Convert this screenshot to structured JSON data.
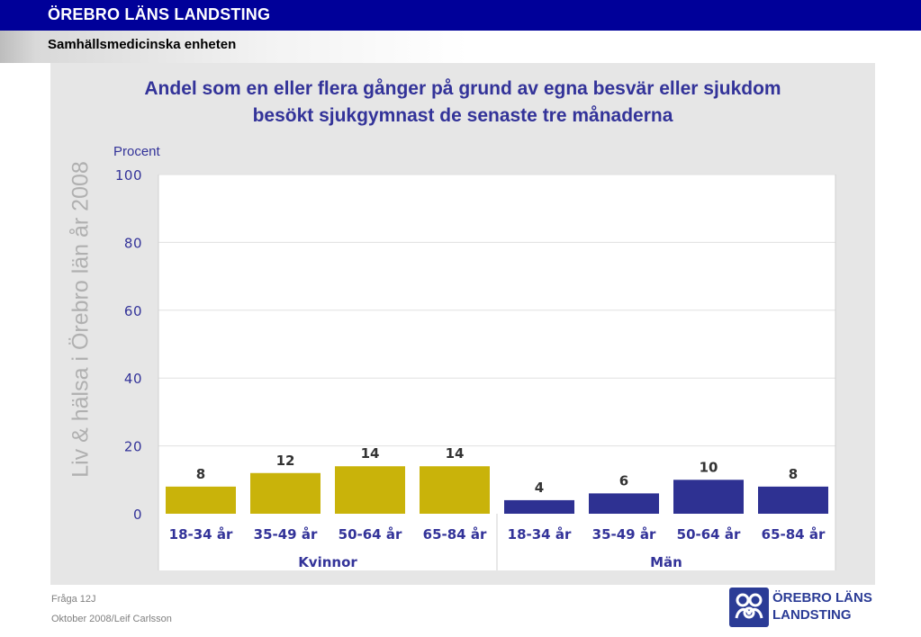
{
  "header": {
    "organization": "ÖREBRO LÄNS LANDSTING",
    "unit": "Samhällsmedicinska enheten"
  },
  "watermark": "Liv & hälsa i Örebro län år 2008",
  "chart_data": {
    "type": "bar",
    "title": "Andel som en eller flera gånger på grund av egna besvär eller sjukdom besökt sjukgymnast de senaste tre månaderna",
    "title_lines": [
      "Andel som en eller flera gånger på grund av egna besvär eller sjukdom",
      "besökt sjukgymnast de senaste tre månaderna"
    ],
    "ylabel": "Procent",
    "xlabel": "",
    "ylim": [
      0,
      100
    ],
    "yticks": [
      0,
      20,
      40,
      60,
      80,
      100
    ],
    "grid": true,
    "legend": "none",
    "groups": [
      {
        "name": "Kvinnor",
        "color": "#c9b30a",
        "categories": [
          "18-34 år",
          "35-49 år",
          "50-64 år",
          "65-84 år"
        ],
        "values": [
          8,
          12,
          14,
          14
        ]
      },
      {
        "name": "Män",
        "color": "#2e3192",
        "categories": [
          "18-34 år",
          "35-49 år",
          "50-64 år",
          "65-84 år"
        ],
        "values": [
          4,
          6,
          10,
          8
        ]
      }
    ],
    "colors": {
      "plot_background": "#ffffff",
      "gridline": "#e0e0e0",
      "text": "#333399"
    }
  },
  "footer": {
    "question": "Fråga 12J",
    "date_author": "Oktober 2008/Leif Carlsson"
  },
  "logo": {
    "line1": "ÖREBRO LÄNS",
    "line2": "LANDSTING",
    "icon": "county-council-logo-icon"
  }
}
